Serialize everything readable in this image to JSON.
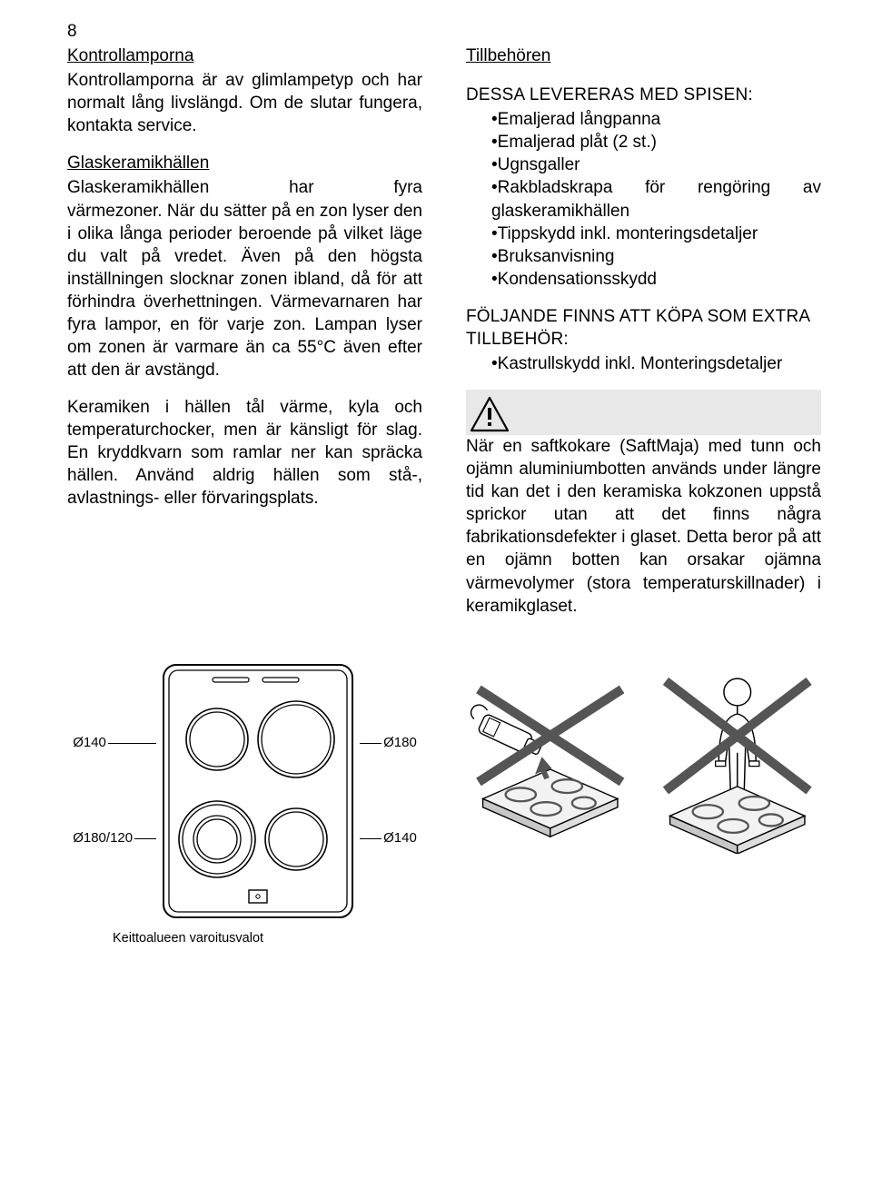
{
  "page_number": "8",
  "left": {
    "sec1_title": "Kontrollamporna",
    "sec1_body": "Kontrollamporna är av glimlampetyp och har normalt lång livslängd. Om de slutar fungera, kontakta service.",
    "sec2_title": "Glaskeramikhällen",
    "sec2_intro_a": "Glaskeramikhällen",
    "sec2_intro_b": "har",
    "sec2_intro_c": "fyra",
    "sec2_body": "värmezoner. När du sätter på en zon lyser den i olika långa perioder beroende på vilket läge du valt på vredet. Även på den högsta inställningen slocknar zonen ibland, då för att förhindra överhettningen. Värmevarnaren har fyra lampor, en för varje zon. Lampan lyser om zonen är varmare än ca 55°C även efter att den är avstängd.",
    "sec2_body2": "Keramiken i hällen tål värme, kyla och temperaturchocker, men är känsligt för slag. En kryddkvarn som ramlar ner kan spräcka hällen. Använd aldrig hällen som stå-, avlastnings- eller förvaringsplats."
  },
  "right": {
    "sec3_title": "Tillbehören",
    "list1_title": "DESSA LEVERERAS MED SPISEN:",
    "list1": [
      "Emaljerad långpanna",
      "Emaljerad plåt (2 st.)",
      "Ugnsgaller",
      "Rakbladskrapa för rengöring av glaskeramikhällen",
      "Tippskydd inkl. monteringsdetaljer",
      "Bruksanvisning",
      "Kondensationsskydd"
    ],
    "list2_title": "FÖLJANDE FINNS ATT KÖPA SOM EXTRA TILLBEHÖR:",
    "list2": [
      "Kastrullskydd inkl. Monteringsdetaljer"
    ],
    "warning_text": "När en saftkokare (SaftMaja) med tunn och ojämn aluminiumbotten används under längre tid kan det i den keramiska kokzonen uppstå sprickor utan att det finns några fabrikationsdefekter i glaset. Detta beror på att en ojämn botten kan orsakar ojämna värmevolymer (stora temperaturskillnader) i keramikglaset."
  },
  "hob": {
    "label_tl": "Ø140",
    "label_tr": "Ø180",
    "label_bl": "Ø180/120",
    "label_br": "Ø140",
    "caption": "Keittoalueen varoitusvalot"
  },
  "colors": {
    "bg": "#ffffff",
    "text": "#000000",
    "gray_fill": "#e8e8e8",
    "line": "#000000"
  }
}
